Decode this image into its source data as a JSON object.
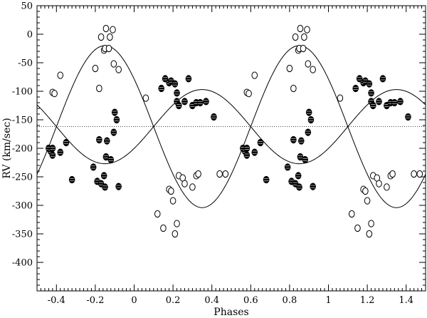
{
  "chart_data": {
    "type": "scatter",
    "title": "",
    "xlabel": "Phases",
    "ylabel": "RV (km/sec)",
    "xlim": [
      -0.5,
      1.5
    ],
    "ylim": [
      -450,
      50
    ],
    "x_ticks": [
      -0.4,
      -0.2,
      0,
      0.2,
      0.4,
      0.6,
      0.8,
      1,
      1.2,
      1.4
    ],
    "x_tick_labels": [
      "-0.4",
      "-0.2",
      "0",
      "0.2",
      "0.4",
      "0.6",
      "0.8",
      "1",
      "1.2",
      "1.4"
    ],
    "y_ticks": [
      50,
      0,
      -50,
      -100,
      -150,
      -200,
      -250,
      -300,
      -350,
      -400
    ],
    "y_tick_labels": [
      "50",
      "0",
      "-50",
      "-100",
      "-150",
      "-200",
      "-250",
      "-300",
      "-350",
      "-400"
    ],
    "systemic_velocity": -162,
    "grid": false,
    "legend": "none",
    "series": [
      {
        "marker": "open-circle",
        "points": [
          [
            -0.42,
            -102
          ],
          [
            -0.41,
            -104
          ],
          [
            -0.38,
            -72
          ],
          [
            -0.2,
            -60
          ],
          [
            -0.18,
            -95
          ],
          [
            -0.17,
            -5
          ],
          [
            -0.155,
            -28
          ],
          [
            -0.15,
            -25
          ],
          [
            -0.145,
            10
          ],
          [
            -0.13,
            -25
          ],
          [
            -0.125,
            -5
          ],
          [
            -0.11,
            8
          ],
          [
            -0.105,
            -52
          ],
          [
            -0.08,
            -62
          ],
          [
            0.06,
            -112
          ],
          [
            0.12,
            -315
          ],
          [
            0.15,
            -340
          ],
          [
            0.18,
            -272
          ],
          [
            0.19,
            -275
          ],
          [
            0.2,
            -292
          ],
          [
            0.21,
            -350
          ],
          [
            0.22,
            -332
          ],
          [
            0.23,
            -248
          ],
          [
            0.25,
            -252
          ],
          [
            0.26,
            -262
          ],
          [
            0.3,
            -268
          ],
          [
            0.32,
            -248
          ],
          [
            0.33,
            -245
          ],
          [
            0.44,
            -245
          ],
          [
            0.47,
            -245
          ],
          [
            0.58,
            -102
          ],
          [
            0.59,
            -104
          ],
          [
            0.62,
            -72
          ],
          [
            0.8,
            -60
          ],
          [
            0.82,
            -95
          ],
          [
            0.83,
            -5
          ],
          [
            0.845,
            -28
          ],
          [
            0.85,
            -25
          ],
          [
            0.855,
            10
          ],
          [
            0.87,
            -25
          ],
          [
            0.875,
            -5
          ],
          [
            0.89,
            8
          ],
          [
            0.895,
            -52
          ],
          [
            0.92,
            -62
          ],
          [
            1.06,
            -112
          ],
          [
            1.12,
            -315
          ],
          [
            1.15,
            -340
          ],
          [
            1.18,
            -272
          ],
          [
            1.19,
            -275
          ],
          [
            1.2,
            -292
          ],
          [
            1.21,
            -350
          ],
          [
            1.22,
            -332
          ],
          [
            1.23,
            -248
          ],
          [
            1.25,
            -252
          ],
          [
            1.26,
            -262
          ],
          [
            1.3,
            -268
          ],
          [
            1.32,
            -248
          ],
          [
            1.33,
            -245
          ],
          [
            1.44,
            -245
          ],
          [
            1.47,
            -245
          ]
        ]
      },
      {
        "marker": "filled-circle",
        "points": [
          [
            -0.44,
            -200
          ],
          [
            -0.43,
            -205
          ],
          [
            -0.42,
            -212
          ],
          [
            -0.42,
            -200
          ],
          [
            -0.38,
            -207
          ],
          [
            -0.35,
            -190
          ],
          [
            -0.32,
            -255
          ],
          [
            -0.21,
            -233
          ],
          [
            -0.19,
            -258
          ],
          [
            -0.18,
            -185
          ],
          [
            -0.17,
            -262
          ],
          [
            -0.155,
            -248
          ],
          [
            -0.15,
            -268
          ],
          [
            -0.145,
            -215
          ],
          [
            -0.14,
            -187
          ],
          [
            -0.12,
            -220
          ],
          [
            -0.105,
            -172
          ],
          [
            -0.1,
            -137
          ],
          [
            -0.09,
            -150
          ],
          [
            -0.08,
            -267
          ],
          [
            0.14,
            -95
          ],
          [
            0.16,
            -78
          ],
          [
            0.18,
            -85
          ],
          [
            0.19,
            -82
          ],
          [
            0.21,
            -87
          ],
          [
            0.22,
            -103
          ],
          [
            0.22,
            -118
          ],
          [
            0.23,
            -125
          ],
          [
            0.26,
            -118
          ],
          [
            0.28,
            -78
          ],
          [
            0.3,
            -125
          ],
          [
            0.32,
            -120
          ],
          [
            0.34,
            -120
          ],
          [
            0.37,
            -118
          ],
          [
            0.41,
            -145
          ],
          [
            0.56,
            -200
          ],
          [
            0.57,
            -205
          ],
          [
            0.58,
            -212
          ],
          [
            0.58,
            -200
          ],
          [
            0.62,
            -207
          ],
          [
            0.65,
            -190
          ],
          [
            0.68,
            -255
          ],
          [
            0.79,
            -233
          ],
          [
            0.81,
            -258
          ],
          [
            0.82,
            -185
          ],
          [
            0.83,
            -262
          ],
          [
            0.845,
            -248
          ],
          [
            0.85,
            -268
          ],
          [
            0.855,
            -215
          ],
          [
            0.86,
            -187
          ],
          [
            0.88,
            -220
          ],
          [
            0.895,
            -172
          ],
          [
            0.9,
            -137
          ],
          [
            0.91,
            -150
          ],
          [
            0.92,
            -267
          ],
          [
            1.14,
            -95
          ],
          [
            1.16,
            -78
          ],
          [
            1.18,
            -85
          ],
          [
            1.19,
            -82
          ],
          [
            1.21,
            -87
          ],
          [
            1.22,
            -103
          ],
          [
            1.22,
            -118
          ],
          [
            1.23,
            -125
          ],
          [
            1.26,
            -118
          ],
          [
            1.28,
            -78
          ],
          [
            1.3,
            -125
          ],
          [
            1.32,
            -120
          ],
          [
            1.34,
            -120
          ],
          [
            1.37,
            -118
          ],
          [
            1.41,
            -145
          ]
        ]
      }
    ],
    "curves": [
      {
        "line": "solid",
        "gamma": -162,
        "K": 142,
        "phase_of_max": -0.15
      },
      {
        "line": "solid",
        "gamma": -162,
        "K": 65,
        "phase_of_max": 0.35
      }
    ]
  }
}
